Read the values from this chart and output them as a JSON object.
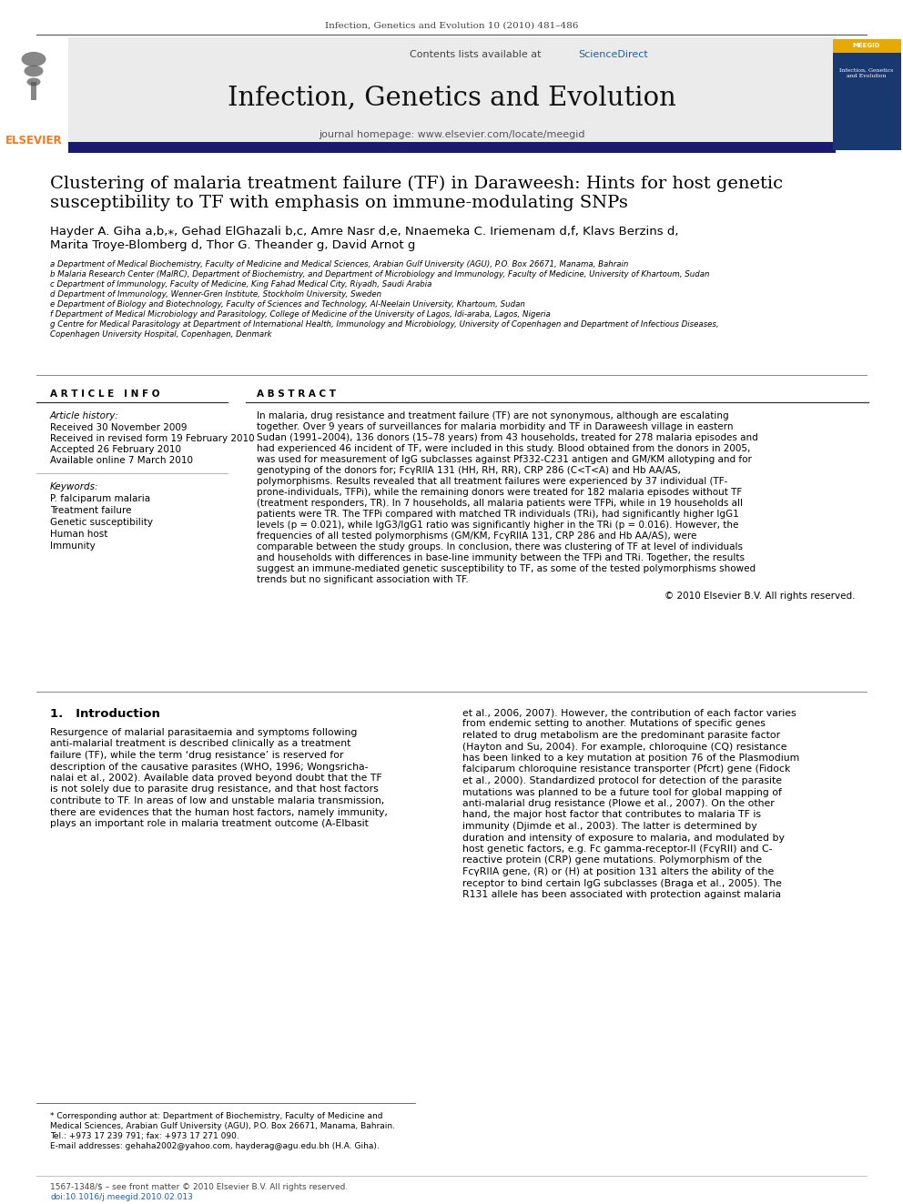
{
  "journal_header": "Infection, Genetics and Evolution 10 (2010) 481–486",
  "journal_name": "Infection, Genetics and Evolution",
  "contents_line": "Contents lists available at ScienceDirect",
  "journal_homepage": "journal homepage: www.elsevier.com/locate/meegid",
  "paper_title_line1": "Clustering of malaria treatment failure (TF) in Daraweesh: Hints for host genetic",
  "paper_title_line2": "susceptibility to TF with emphasis on immune-modulating SNPs",
  "authors_line1": "Hayder A. Giha a,b,⁎, Gehad ElGhazali b,c, Amre Nasr d,e, Nnaemeka C. Iriemenam d,f, Klavs Berzins d,",
  "authors_line2": "Marita Troye-Blomberg d, Thor G. Theander g, David Arnot g",
  "affil_a": "a Department of Medical Biochemistry, Faculty of Medicine and Medical Sciences, Arabian Gulf University (AGU), P.O. Box 26671, Manama, Bahrain",
  "affil_b": "b Malaria Research Center (MalRC), Department of Biochemistry, and Department of Microbiology and Immunology, Faculty of Medicine, University of Khartoum, Sudan",
  "affil_c": "c Department of Immunology, Faculty of Medicine, King Fahad Medical City, Riyadh, Saudi Arabia",
  "affil_d": "d Department of Immunology, Wenner-Gren Institute, Stockholm University, Sweden",
  "affil_e": "e Department of Biology and Biotechnology, Faculty of Sciences and Technology, Al-Neelain University, Khartoum, Sudan",
  "affil_f": "f Department of Medical Microbiology and Parasitology, College of Medicine of the University of Lagos, Idi-araba, Lagos, Nigeria",
  "affil_g1": "g Centre for Medical Parasitology at Department of International Health, Immunology and Microbiology, University of Copenhagen and Department of Infectious Diseases,",
  "affil_g2": "Copenhagen University Hospital, Copenhagen, Denmark",
  "article_info_title": "A R T I C L E   I N F O",
  "article_history_label": "Article history:",
  "received": "Received 30 November 2009",
  "revised": "Received in revised form 19 February 2010",
  "accepted": "Accepted 26 February 2010",
  "available": "Available online 7 March 2010",
  "keywords_label": "Keywords:",
  "keyword1": "P. falciparum malaria",
  "keyword2": "Treatment failure",
  "keyword3": "Genetic susceptibility",
  "keyword4": "Human host",
  "keyword5": "Immunity",
  "abstract_title": "A B S T R A C T",
  "abstract_lines": [
    "In malaria, drug resistance and treatment failure (TF) are not synonymous, although are escalating",
    "together. Over 9 years of surveillances for malaria morbidity and TF in Daraweesh village in eastern",
    "Sudan (1991–2004), 136 donors (15–78 years) from 43 households, treated for 278 malaria episodes and",
    "had experienced 46 incident of TF, were included in this study. Blood obtained from the donors in 2005,",
    "was used for measurement of IgG subclasses against Pf332-C231 antigen and GM/KM allotyping and for",
    "genotyping of the donors for; FcγRIIA 131 (HH, RH, RR), CRP 286 (C<T<A) and Hb AA/AS,",
    "polymorphisms. Results revealed that all treatment failures were experienced by 37 individual (TF-",
    "prone-individuals, TFPi), while the remaining donors were treated for 182 malaria episodes without TF",
    "(treatment responders, TR). In 7 households, all malaria patients were TFPi, while in 19 households all",
    "patients were TR. The TFPi compared with matched TR individuals (TRi), had significantly higher IgG1",
    "levels (p = 0.021), while IgG3/IgG1 ratio was significantly higher in the TRi (p = 0.016). However, the",
    "frequencies of all tested polymorphisms (GM/KM, FcγRIIA 131, CRP 286 and Hb AA/AS), were",
    "comparable between the study groups. In conclusion, there was clustering of TF at level of individuals",
    "and households with differences in base-line immunity between the TFPi and TRi. Together, the results",
    "suggest an immune-mediated genetic susceptibility to TF, as some of the tested polymorphisms showed",
    "trends but no significant association with TF."
  ],
  "copyright": "© 2010 Elsevier B.V. All rights reserved.",
  "section1_title": "1.   Introduction",
  "intro_left_lines": [
    "Resurgence of malarial parasitaemia and symptoms following",
    "anti-malarial treatment is described clinically as a treatment",
    "failure (TF), while the term ‘drug resistance’ is reserved for",
    "description of the causative parasites (WHO, 1996; Wongsricha-",
    "nalai et al., 2002). Available data proved beyond doubt that the TF",
    "is not solely due to parasite drug resistance, and that host factors",
    "contribute to TF. In areas of low and unstable malaria transmission,",
    "there are evidences that the human host factors, namely immunity,",
    "plays an important role in malaria treatment outcome (A-Elbasit"
  ],
  "intro_right_lines": [
    "et al., 2006, 2007). However, the contribution of each factor varies",
    "from endemic setting to another. Mutations of specific genes",
    "related to drug metabolism are the predominant parasite factor",
    "(Hayton and Su, 2004). For example, chloroquine (CQ) resistance",
    "has been linked to a key mutation at position 76 of the Plasmodium",
    "falciparum chloroquine resistance transporter (Pfcrt) gene (Fidock",
    "et al., 2000). Standardized protocol for detection of the parasite",
    "mutations was planned to be a future tool for global mapping of",
    "anti-malarial drug resistance (Plowe et al., 2007). On the other",
    "hand, the major host factor that contributes to malaria TF is",
    "immunity (Djimde et al., 2003). The latter is determined by",
    "duration and intensity of exposure to malaria, and modulated by",
    "host genetic factors, e.g. Fc gamma-receptor-II (FcγRII) and C-",
    "reactive protein (CRP) gene mutations. Polymorphism of the",
    "FcγRIIA gene, (R) or (H) at position 131 alters the ability of the",
    "receptor to bind certain IgG subclasses (Braga et al., 2005). The",
    "R131 allele has been associated with protection against malaria"
  ],
  "footnote_lines": [
    "* Corresponding author at: Department of Biochemistry, Faculty of Medicine and",
    "Medical Sciences, Arabian Gulf University (AGU), P.O. Box 26671, Manama, Bahrain.",
    "Tel.: +973 17 239 791; fax: +973 17 271 090.",
    "E-mail addresses: gehaha2002@yahoo.com, hayderag@agu.edu.bh (H.A. Giha)."
  ],
  "issn_line": "1567-1348/$ – see front matter © 2010 Elsevier B.V. All rights reserved.",
  "doi_line": "doi:10.1016/j.meegid.2010.02.013",
  "bg_color": "#ffffff",
  "elsevier_orange": "#f47920",
  "sciencedirect_blue": "#2060a0",
  "link_blue": "#2060a0",
  "header_dark": "#1a1a6e",
  "header_bg": "#e8e8e8"
}
